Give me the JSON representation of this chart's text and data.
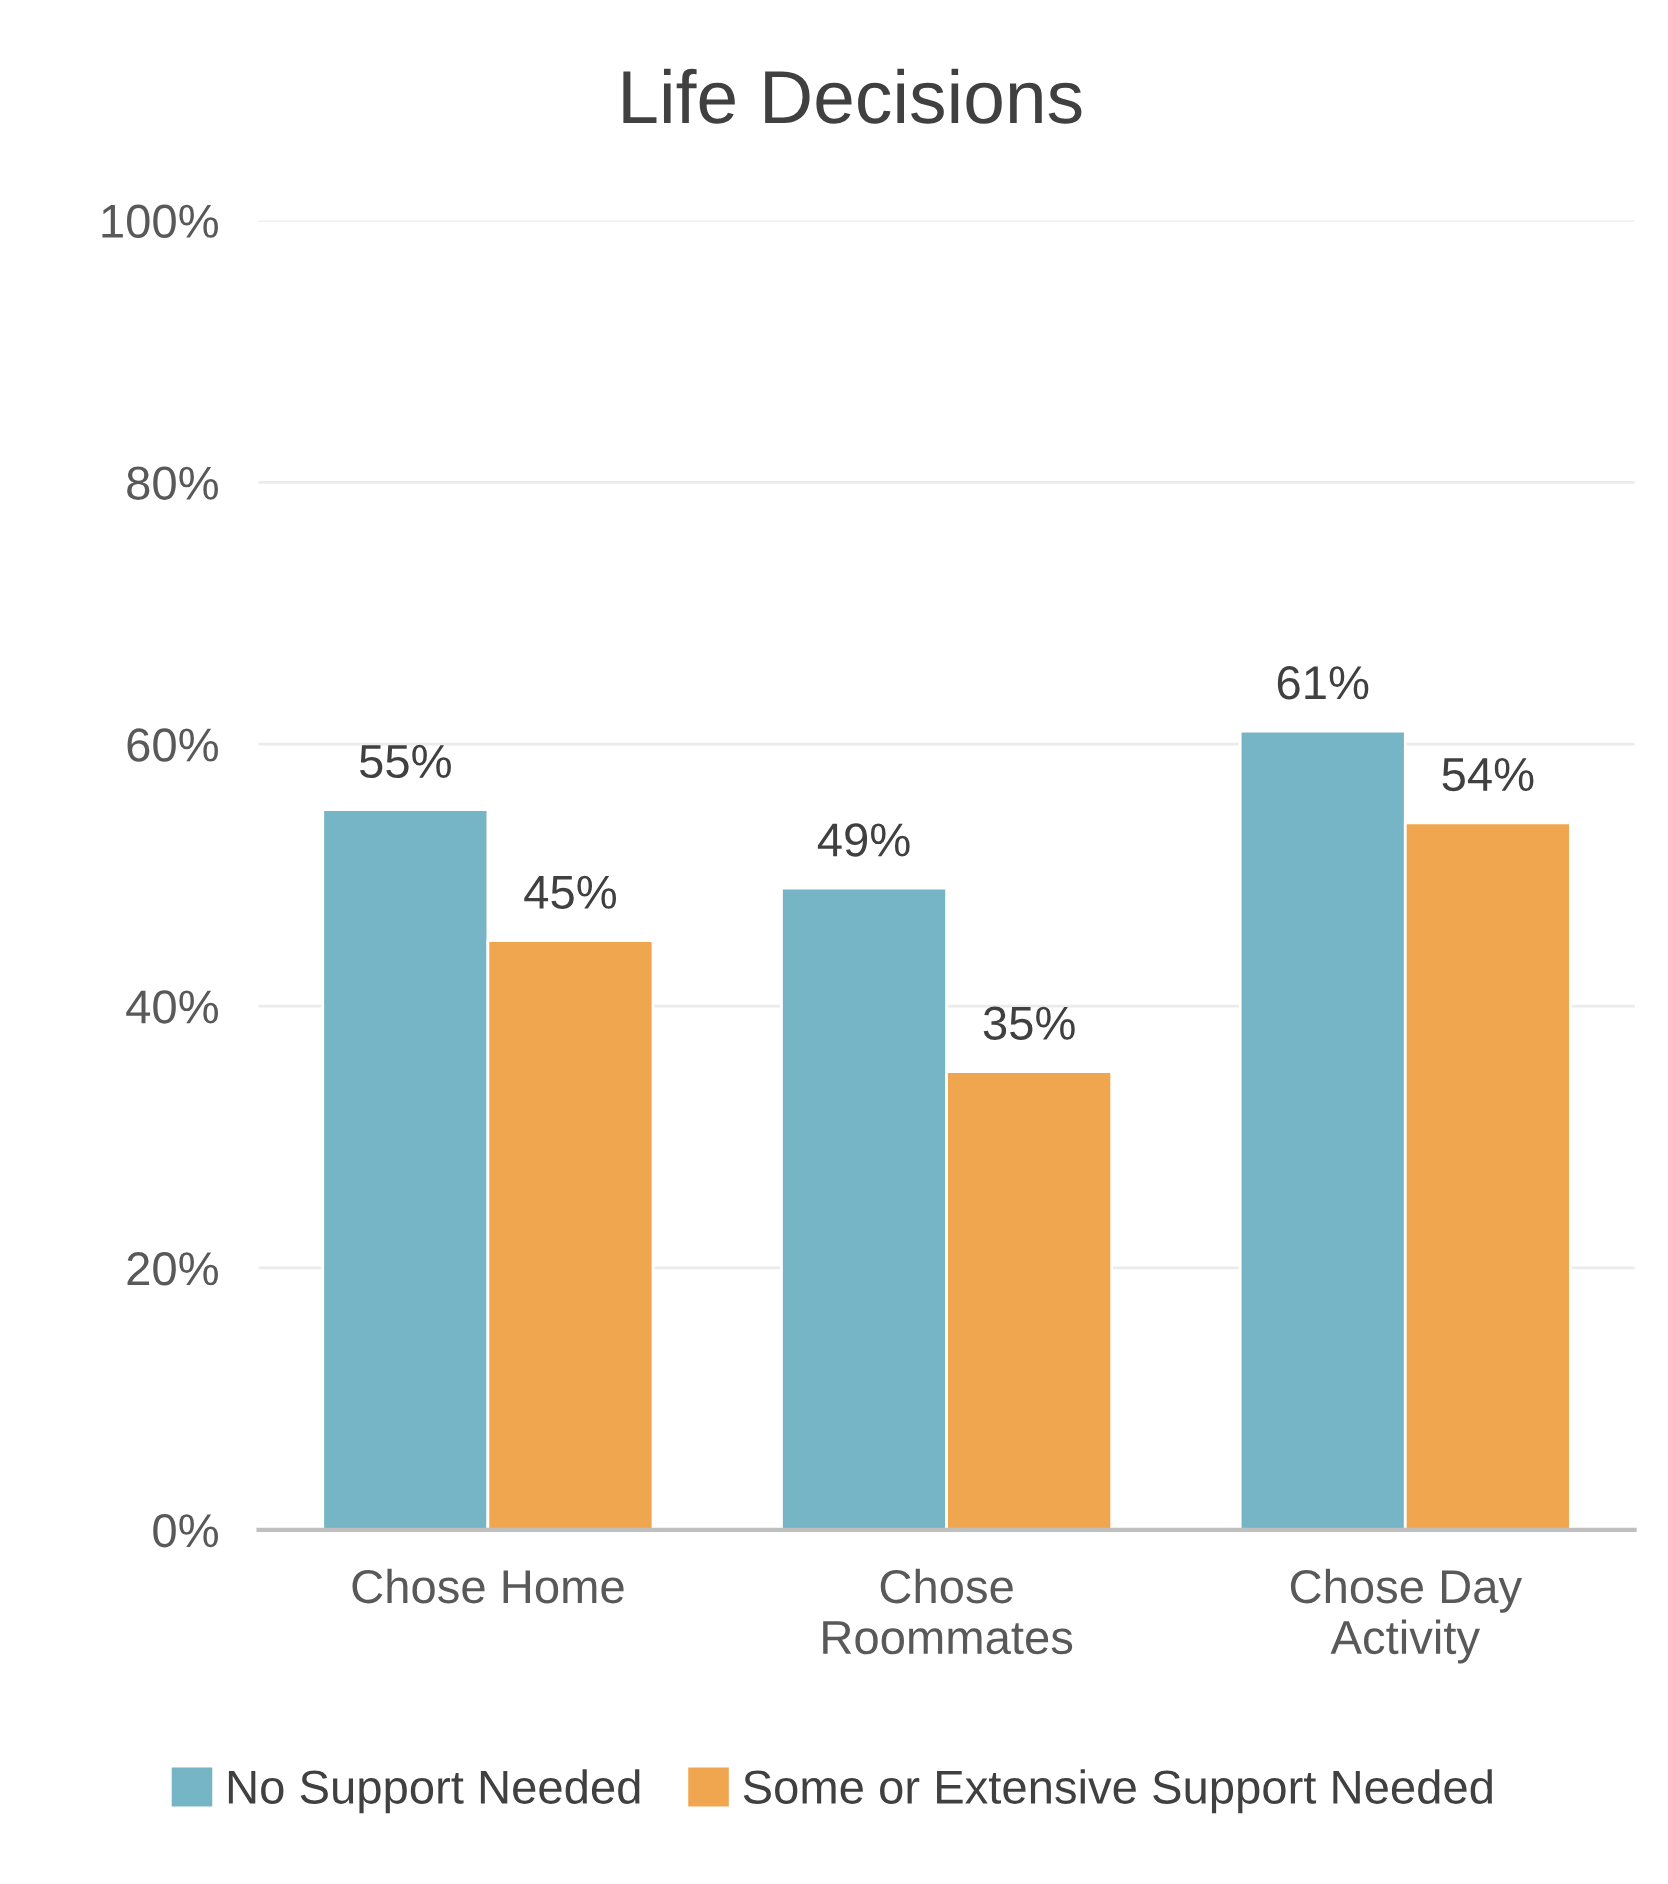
{
  "chart_data": {
    "type": "bar",
    "title": "Life Decisions",
    "categories": [
      "Chose Home",
      "Chose\nRoommates",
      "Chose Day\nActivity"
    ],
    "series": [
      {
        "name": "No Support Needed",
        "color": "#76b5c5",
        "values": [
          55,
          49,
          61
        ],
        "value_labels": [
          "55%",
          "49%",
          "61%"
        ]
      },
      {
        "name": "Some or Extensive Support Needed",
        "color": "#f0a64f",
        "values": [
          45,
          35,
          54
        ],
        "value_labels": [
          "45%",
          "35%",
          "54%"
        ]
      }
    ],
    "ylim": [
      0,
      100
    ],
    "yticks": [
      {
        "value": 0,
        "label": "0%"
      },
      {
        "value": 20,
        "label": "20%"
      },
      {
        "value": 40,
        "label": "40%"
      },
      {
        "value": 60,
        "label": "60%"
      },
      {
        "value": 80,
        "label": "80%"
      },
      {
        "value": 100,
        "label": "100%"
      }
    ],
    "grid": "y",
    "legend": "bottom"
  }
}
